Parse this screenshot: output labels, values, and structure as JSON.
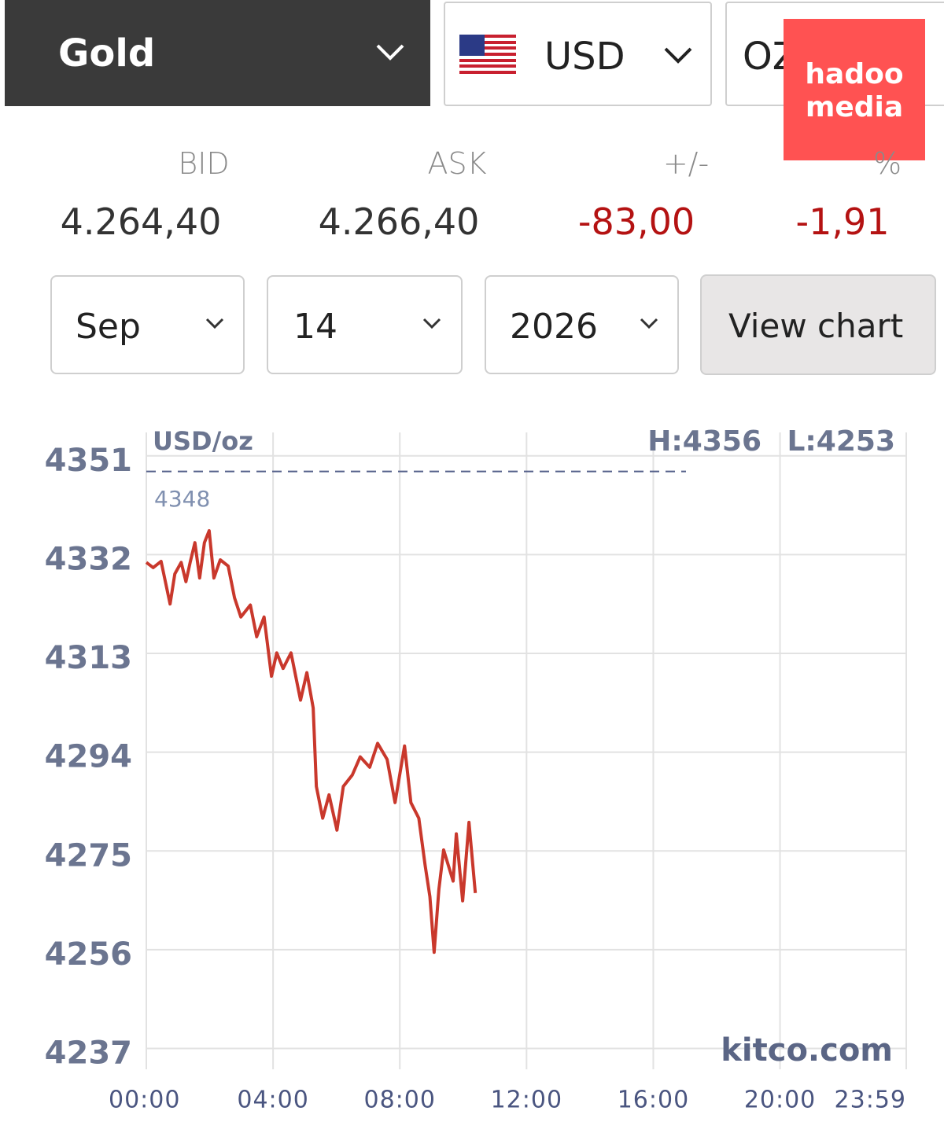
{
  "selectors": {
    "metal": "Gold",
    "currency": "USD",
    "unit": "OZ"
  },
  "watermark": {
    "line1": "hadoo",
    "line2": "media"
  },
  "quote": {
    "headers": [
      "BID",
      "ASK",
      "+/-",
      "%"
    ],
    "values": [
      "4.264,40",
      "4.266,40",
      "-83,00",
      "-1,91"
    ]
  },
  "date": {
    "month": "Sep",
    "day": "14",
    "year": "2026"
  },
  "button": "View chart",
  "chart_data": {
    "type": "line",
    "unit_label": "USD/oz",
    "high": "H:4356",
    "low": "L:4253",
    "reference": 4348,
    "source": "kitco.com",
    "x": [
      0,
      13,
      28,
      45,
      54,
      66,
      75,
      83,
      92,
      101,
      110,
      119,
      128,
      140,
      155,
      167,
      179,
      197,
      209,
      223,
      237,
      247,
      259,
      274,
      292,
      304,
      316,
      322,
      334,
      346,
      361,
      373,
      390,
      405,
      423,
      438,
      456,
      471,
      489,
      501,
      516,
      528,
      537,
      545,
      554,
      563,
      572,
      581,
      587,
      599,
      611,
      623
    ],
    "series": [
      {
        "color": "#c9382c",
        "values": [
          4330.5,
          4329.5,
          4330.7,
          4322.5,
          4328.3,
          4330.5,
          4326.8,
          4330.5,
          4334.3,
          4327.5,
          4334.3,
          4336.6,
          4327.5,
          4331,
          4329.8,
          4323.7,
          4320,
          4322.3,
          4316.2,
          4320,
          4308.6,
          4313.1,
          4310.1,
          4313.1,
          4304,
          4309.3,
          4302.5,
          4287.4,
          4281.3,
          4285.8,
          4279,
          4287.4,
          4289.6,
          4293.1,
          4291.1,
          4295.7,
          4292.6,
          4284.3,
          4295.2,
          4284.3,
          4281.3,
          4272.2,
          4266.2,
          4255.5,
          4267.6,
          4275.2,
          4272.2,
          4269.2,
          4278.3,
          4265.4,
          4280.5,
          4266.9
        ]
      }
    ],
    "xlim": [
      0,
      1439
    ],
    "ylim": [
      4233,
      4355.5
    ],
    "xticks": [
      {
        "value": 0,
        "label": "00:00"
      },
      {
        "value": 240,
        "label": "04:00"
      },
      {
        "value": 480,
        "label": "08:00"
      },
      {
        "value": 720,
        "label": "12:00"
      },
      {
        "value": 960,
        "label": "16:00"
      },
      {
        "value": 1200,
        "label": "20:00"
      },
      {
        "value": 1439,
        "label": "23:59"
      }
    ],
    "yticks": [
      4237,
      4256,
      4275,
      4294,
      4313,
      4332,
      4351
    ],
    "grid": true
  }
}
